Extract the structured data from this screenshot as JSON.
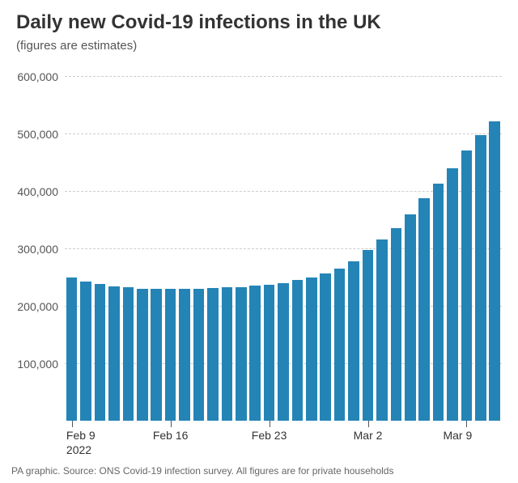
{
  "title": "Daily new Covid-19 infections in the UK",
  "subtitle": "(figures are estimates)",
  "footer": "PA graphic. Source: ONS Covid-19 infection survey. All figures are for private households",
  "chart": {
    "type": "bar",
    "background_color": "#ffffff",
    "grid_color": "#cccccc",
    "bar_color": "#2484b6",
    "title_fontsize": 24,
    "title_color": "#333333",
    "subtitle_fontsize": 15,
    "label_fontsize": 14,
    "label_color": "#555555",
    "footer_fontsize": 12,
    "footer_color": "#666666",
    "ylim": [
      0,
      620000
    ],
    "yticks": [
      {
        "value": 100000,
        "label": "100,000"
      },
      {
        "value": 200000,
        "label": "200,000"
      },
      {
        "value": 300000,
        "label": "300,000"
      },
      {
        "value": 400000,
        "label": "400,000"
      },
      {
        "value": 500000,
        "label": "500,000"
      },
      {
        "value": 600000,
        "label": "600,000"
      }
    ],
    "xticks": [
      {
        "index": 0,
        "label": "Feb 9",
        "sublabel": "2022",
        "align": "left"
      },
      {
        "index": 7,
        "label": "Feb 16",
        "align": "center"
      },
      {
        "index": 14,
        "label": "Feb 23",
        "align": "center"
      },
      {
        "index": 21,
        "label": "Mar 2",
        "align": "center"
      },
      {
        "index": 28,
        "label": "Mar 9",
        "align": "right"
      }
    ],
    "bar_width_ratio": 0.78,
    "values": [
      250000,
      243000,
      238000,
      234000,
      232000,
      230000,
      230000,
      230000,
      230000,
      230000,
      231000,
      232000,
      233000,
      235000,
      237000,
      240000,
      245000,
      250000,
      257000,
      265000,
      278000,
      297000,
      315000,
      335000,
      360000,
      388000,
      413000,
      440000,
      470000,
      497000,
      522000
    ]
  }
}
